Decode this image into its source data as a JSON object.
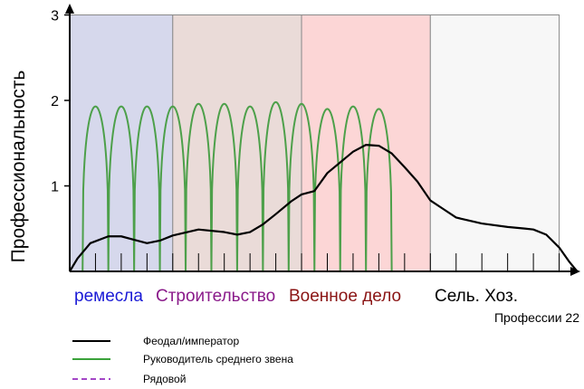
{
  "chart_data": {
    "type": "line",
    "ylabel": "Профессиональность",
    "xlabel": "Профессии 22",
    "ylim": [
      0,
      3
    ],
    "yticks": [
      "1",
      "2",
      "3"
    ],
    "xlim": [
      0,
      22
    ],
    "grid": false,
    "bands": [
      {
        "label": "ремесла",
        "from": 0,
        "to": 4,
        "color": "#d6d8ec",
        "label_color": "#1a1ad6"
      },
      {
        "label": "Строительство",
        "from": 4,
        "to": 9,
        "color": "#eadbd8",
        "label_color": "#8a1a8a"
      },
      {
        "label": "Военное дело",
        "from": 9,
        "to": 14,
        "color": "#fcd6d6",
        "label_color": "#8a1414"
      },
      {
        "label": "Сель. Хоз.",
        "from": 14,
        "to": 19,
        "color": "#f7f7f7",
        "label_color": "#000000"
      }
    ],
    "minor_ticks": [
      1,
      2,
      3,
      4,
      5,
      6,
      7,
      8,
      9,
      10,
      11,
      12,
      13,
      14,
      15,
      16,
      17,
      18,
      19
    ],
    "series": [
      {
        "name": "Феодал/император",
        "color": "#000000",
        "style": "solid",
        "points": [
          [
            0,
            0
          ],
          [
            0.3,
            0.15
          ],
          [
            0.8,
            0.33
          ],
          [
            1.5,
            0.41
          ],
          [
            2,
            0.41
          ],
          [
            2.5,
            0.37
          ],
          [
            3,
            0.33
          ],
          [
            3.5,
            0.36
          ],
          [
            4,
            0.42
          ],
          [
            5,
            0.49
          ],
          [
            6,
            0.46
          ],
          [
            6.5,
            0.43
          ],
          [
            7,
            0.46
          ],
          [
            7.5,
            0.55
          ],
          [
            8,
            0.67
          ],
          [
            8.6,
            0.82
          ],
          [
            9,
            0.9
          ],
          [
            9.5,
            0.94
          ],
          [
            10,
            1.15
          ],
          [
            11,
            1.4
          ],
          [
            11.5,
            1.48
          ],
          [
            12,
            1.47
          ],
          [
            12.5,
            1.38
          ],
          [
            13,
            1.22
          ],
          [
            13.5,
            1.05
          ],
          [
            14,
            0.83
          ],
          [
            14.5,
            0.73
          ],
          [
            15,
            0.63
          ],
          [
            16,
            0.56
          ],
          [
            17,
            0.52
          ],
          [
            17.7,
            0.5
          ],
          [
            18,
            0.49
          ],
          [
            18.5,
            0.43
          ],
          [
            19,
            0.28
          ],
          [
            19.4,
            0.11
          ],
          [
            19.7,
            0
          ]
        ]
      },
      {
        "name": "Руководитель среднего звена",
        "color": "#4da04a",
        "style": "solid",
        "peaks": [
          1.93,
          1.93,
          1.93,
          1.93,
          1.96,
          1.96,
          1.93,
          1.98,
          1.96,
          1.9,
          1.93,
          1.9
        ]
      },
      {
        "name": "Рядовой",
        "color": "#a347c7",
        "style": "dashed",
        "points": []
      }
    ]
  },
  "legend": [
    {
      "label": "Феодал/император",
      "color": "#000000",
      "style": "solid"
    },
    {
      "label": "Руководитель среднего звена",
      "color": "#3aa23a",
      "style": "solid"
    },
    {
      "label": "Рядовой",
      "color": "#a347c7",
      "style": "dashed"
    }
  ]
}
